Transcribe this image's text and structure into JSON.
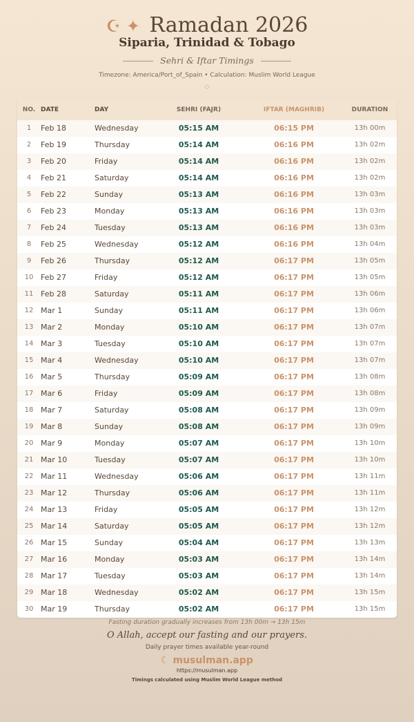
{
  "header": {
    "title": "Ramadan 2026",
    "icons": [
      "crescent-star-icon",
      "sparkle-icon"
    ],
    "city": "Siparia, Trinidad & Tobago",
    "subtitle": "Sehri & Iftar Timings",
    "meta": "Timezone: America/Port_of_Spain • Calculation: Muslim World League",
    "ornament": "◇"
  },
  "table": {
    "columns": [
      "NO.",
      "DATE",
      "DAY",
      "SEHRI (FAJR)",
      "IFTAR (MAGHRIB)",
      "DURATION"
    ],
    "rows": [
      [
        "1",
        "Feb 18",
        "Wednesday",
        "05:15 AM",
        "06:15 PM",
        "13h 00m"
      ],
      [
        "2",
        "Feb 19",
        "Thursday",
        "05:14 AM",
        "06:16 PM",
        "13h 02m"
      ],
      [
        "3",
        "Feb 20",
        "Friday",
        "05:14 AM",
        "06:16 PM",
        "13h 02m"
      ],
      [
        "4",
        "Feb 21",
        "Saturday",
        "05:14 AM",
        "06:16 PM",
        "13h 02m"
      ],
      [
        "5",
        "Feb 22",
        "Sunday",
        "05:13 AM",
        "06:16 PM",
        "13h 03m"
      ],
      [
        "6",
        "Feb 23",
        "Monday",
        "05:13 AM",
        "06:16 PM",
        "13h 03m"
      ],
      [
        "7",
        "Feb 24",
        "Tuesday",
        "05:13 AM",
        "06:16 PM",
        "13h 03m"
      ],
      [
        "8",
        "Feb 25",
        "Wednesday",
        "05:12 AM",
        "06:16 PM",
        "13h 04m"
      ],
      [
        "9",
        "Feb 26",
        "Thursday",
        "05:12 AM",
        "06:17 PM",
        "13h 05m"
      ],
      [
        "10",
        "Feb 27",
        "Friday",
        "05:12 AM",
        "06:17 PM",
        "13h 05m"
      ],
      [
        "11",
        "Feb 28",
        "Saturday",
        "05:11 AM",
        "06:17 PM",
        "13h 06m"
      ],
      [
        "12",
        "Mar 1",
        "Sunday",
        "05:11 AM",
        "06:17 PM",
        "13h 06m"
      ],
      [
        "13",
        "Mar 2",
        "Monday",
        "05:10 AM",
        "06:17 PM",
        "13h 07m"
      ],
      [
        "14",
        "Mar 3",
        "Tuesday",
        "05:10 AM",
        "06:17 PM",
        "13h 07m"
      ],
      [
        "15",
        "Mar 4",
        "Wednesday",
        "05:10 AM",
        "06:17 PM",
        "13h 07m"
      ],
      [
        "16",
        "Mar 5",
        "Thursday",
        "05:09 AM",
        "06:17 PM",
        "13h 08m"
      ],
      [
        "17",
        "Mar 6",
        "Friday",
        "05:09 AM",
        "06:17 PM",
        "13h 08m"
      ],
      [
        "18",
        "Mar 7",
        "Saturday",
        "05:08 AM",
        "06:17 PM",
        "13h 09m"
      ],
      [
        "19",
        "Mar 8",
        "Sunday",
        "05:08 AM",
        "06:17 PM",
        "13h 09m"
      ],
      [
        "20",
        "Mar 9",
        "Monday",
        "05:07 AM",
        "06:17 PM",
        "13h 10m"
      ],
      [
        "21",
        "Mar 10",
        "Tuesday",
        "05:07 AM",
        "06:17 PM",
        "13h 10m"
      ],
      [
        "22",
        "Mar 11",
        "Wednesday",
        "05:06 AM",
        "06:17 PM",
        "13h 11m"
      ],
      [
        "23",
        "Mar 12",
        "Thursday",
        "05:06 AM",
        "06:17 PM",
        "13h 11m"
      ],
      [
        "24",
        "Mar 13",
        "Friday",
        "05:05 AM",
        "06:17 PM",
        "13h 12m"
      ],
      [
        "25",
        "Mar 14",
        "Saturday",
        "05:05 AM",
        "06:17 PM",
        "13h 12m"
      ],
      [
        "26",
        "Mar 15",
        "Sunday",
        "05:04 AM",
        "06:17 PM",
        "13h 13m"
      ],
      [
        "27",
        "Mar 16",
        "Monday",
        "05:03 AM",
        "06:17 PM",
        "13h 14m"
      ],
      [
        "28",
        "Mar 17",
        "Tuesday",
        "05:03 AM",
        "06:17 PM",
        "13h 14m"
      ],
      [
        "29",
        "Mar 18",
        "Wednesday",
        "05:02 AM",
        "06:17 PM",
        "13h 15m"
      ],
      [
        "30",
        "Mar 19",
        "Thursday",
        "05:02 AM",
        "06:17 PM",
        "13h 15m"
      ]
    ]
  },
  "footer": {
    "note": "Fasting duration gradually increases from 13h 00m → 13h 15m",
    "dua": "O Allah, accept our fasting and our prayers.",
    "tagline": "Daily prayer times available year-round",
    "brand": "musulman.app",
    "url": "https://musulman.app",
    "method": "Timings calculated using Muslim World League method"
  },
  "colors": {
    "sehri": "#1f5a4e",
    "iftar": "#c9926a",
    "text": "#5a4636"
  }
}
